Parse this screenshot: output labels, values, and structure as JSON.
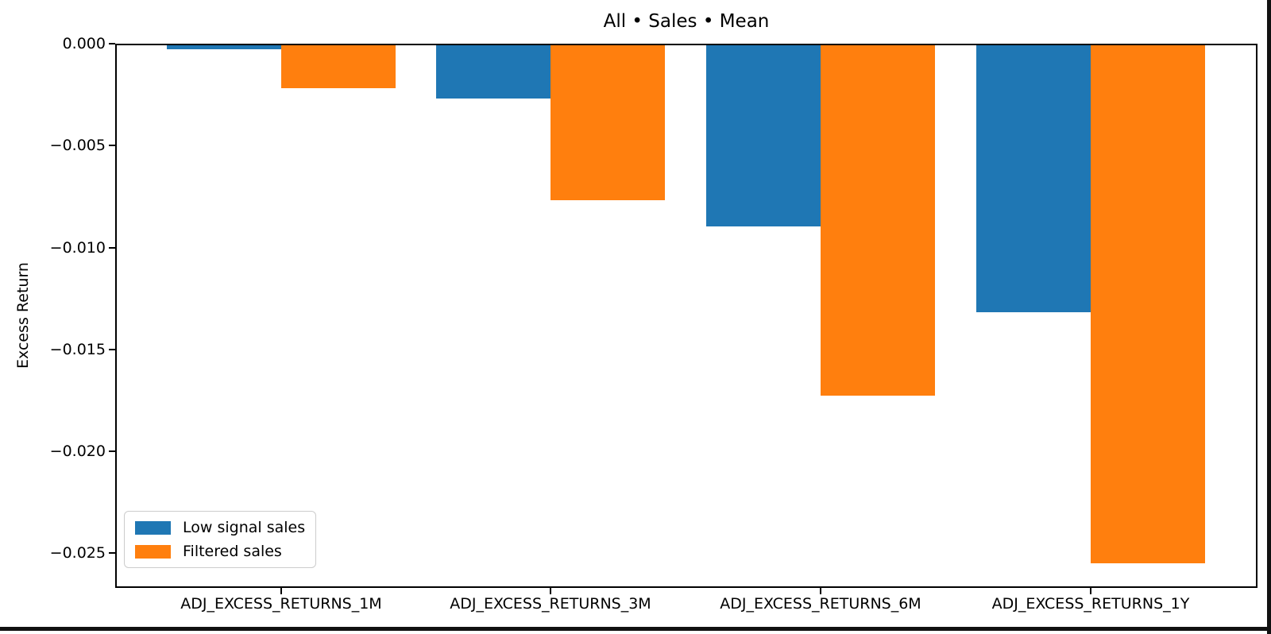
{
  "chart_data": {
    "type": "bar",
    "title": "All • Sales • Mean",
    "xlabel": "",
    "ylabel": "Excess Return",
    "categories": [
      "ADJ_EXCESS_RETURNS_1M",
      "ADJ_EXCESS_RETURNS_3M",
      "ADJ_EXCESS_RETURNS_6M",
      "ADJ_EXCESS_RETURNS_1Y"
    ],
    "series": [
      {
        "name": "Low signal sales",
        "color": "#1f77b4",
        "values": [
          -0.0002,
          -0.0026,
          -0.0089,
          -0.0131
        ]
      },
      {
        "name": "Filtered sales",
        "color": "#ff7f0e",
        "values": [
          -0.0021,
          -0.0076,
          -0.0172,
          -0.0254
        ]
      }
    ],
    "ylim": [
      -0.0267,
      0.0
    ],
    "yticks": [
      0.0,
      -0.005,
      -0.01,
      -0.015,
      -0.02,
      -0.025
    ],
    "ytick_labels": [
      "0.000",
      "−0.005",
      "−0.010",
      "−0.015",
      "−0.020",
      "−0.025"
    ],
    "grid": false,
    "legend_position": "lower left",
    "axis_color": "#000000",
    "background_color": "#ffffff"
  }
}
